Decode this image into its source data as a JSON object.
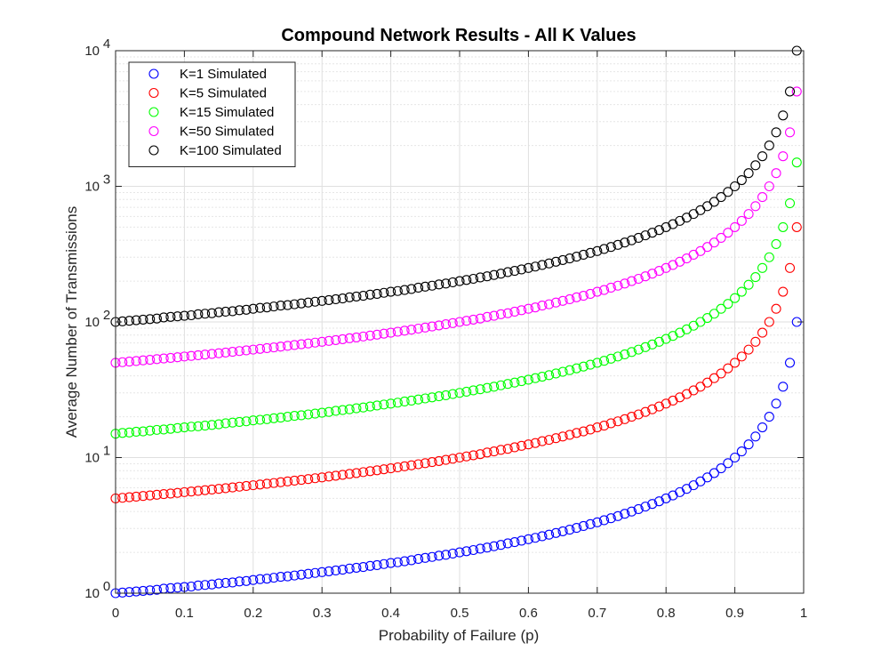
{
  "chart_data": {
    "type": "scatter",
    "title": "Compound Network Results - All K Values",
    "xlabel": "Probability of Failure (p)",
    "ylabel": "Average Number of Transmissions",
    "xlim": [
      0,
      1
    ],
    "ylim": [
      1,
      10000
    ],
    "yscale": "log",
    "grid": true,
    "minor_grid": true,
    "legend_position": "top-left",
    "x_ticks": [
      "0",
      "0.1",
      "0.2",
      "0.3",
      "0.4",
      "0.5",
      "0.6",
      "0.7",
      "0.8",
      "0.9",
      "1"
    ],
    "y_ticks": [
      {
        "value": 1,
        "base": "10",
        "exp": "0"
      },
      {
        "value": 10,
        "base": "10",
        "exp": "1"
      },
      {
        "value": 100,
        "base": "10",
        "exp": "2"
      },
      {
        "value": 1000,
        "base": "10",
        "exp": "3"
      },
      {
        "value": 10000,
        "base": "10",
        "exp": "4"
      }
    ],
    "x": [
      0,
      0.01,
      0.02,
      0.03,
      0.04,
      0.05,
      0.06,
      0.07,
      0.08,
      0.09,
      0.1,
      0.11,
      0.12,
      0.13,
      0.14,
      0.15,
      0.16,
      0.17,
      0.18,
      0.19,
      0.2,
      0.21,
      0.22,
      0.23,
      0.24,
      0.25,
      0.26,
      0.27,
      0.28,
      0.29,
      0.3,
      0.31,
      0.32,
      0.33,
      0.34,
      0.35,
      0.36,
      0.37,
      0.38,
      0.39,
      0.4,
      0.41,
      0.42,
      0.43,
      0.44,
      0.45,
      0.46,
      0.47,
      0.48,
      0.49,
      0.5,
      0.51,
      0.52,
      0.53,
      0.54,
      0.55,
      0.56,
      0.57,
      0.58,
      0.59,
      0.6,
      0.61,
      0.62,
      0.63,
      0.64,
      0.65,
      0.66,
      0.67,
      0.68,
      0.69,
      0.7,
      0.71,
      0.72,
      0.73,
      0.74,
      0.75,
      0.76,
      0.77,
      0.78,
      0.79,
      0.8,
      0.81,
      0.82,
      0.83,
      0.84,
      0.85,
      0.86,
      0.87,
      0.88,
      0.89,
      0.9,
      0.91,
      0.92,
      0.93,
      0.94,
      0.95,
      0.96,
      0.97,
      0.98,
      0.99
    ],
    "series": [
      {
        "name": "K=1 Simulated",
        "color": "#0000ff",
        "values": [
          1.0,
          1.01,
          1.02,
          1.03,
          1.04,
          1.05,
          1.06,
          1.08,
          1.09,
          1.1,
          1.11,
          1.12,
          1.14,
          1.15,
          1.16,
          1.18,
          1.19,
          1.2,
          1.22,
          1.23,
          1.25,
          1.27,
          1.28,
          1.3,
          1.32,
          1.33,
          1.35,
          1.37,
          1.39,
          1.41,
          1.43,
          1.45,
          1.47,
          1.49,
          1.52,
          1.54,
          1.56,
          1.59,
          1.61,
          1.64,
          1.67,
          1.69,
          1.72,
          1.75,
          1.79,
          1.82,
          1.85,
          1.89,
          1.92,
          1.96,
          2.0,
          2.04,
          2.08,
          2.13,
          2.17,
          2.22,
          2.27,
          2.33,
          2.38,
          2.44,
          2.5,
          2.56,
          2.63,
          2.7,
          2.78,
          2.86,
          2.94,
          3.03,
          3.13,
          3.23,
          3.33,
          3.45,
          3.57,
          3.7,
          3.85,
          4.0,
          4.17,
          4.35,
          4.55,
          4.76,
          5.0,
          5.26,
          5.56,
          5.88,
          6.25,
          6.67,
          7.14,
          7.69,
          8.33,
          9.09,
          10.0,
          11.1,
          12.5,
          14.3,
          16.7,
          20.0,
          25.0,
          33.3,
          50.0,
          100.0
        ]
      },
      {
        "name": "K=5 Simulated",
        "color": "#ff0000",
        "values": [
          5.0,
          5.05,
          5.1,
          5.15,
          5.21,
          5.26,
          5.32,
          5.38,
          5.43,
          5.49,
          5.56,
          5.62,
          5.68,
          5.75,
          5.81,
          5.88,
          5.95,
          6.02,
          6.1,
          6.17,
          6.25,
          6.33,
          6.41,
          6.49,
          6.58,
          6.67,
          6.76,
          6.85,
          6.94,
          7.04,
          7.14,
          7.25,
          7.35,
          7.46,
          7.58,
          7.69,
          7.81,
          7.94,
          8.06,
          8.2,
          8.33,
          8.47,
          8.62,
          8.77,
          8.93,
          9.09,
          9.26,
          9.43,
          9.62,
          9.8,
          10.0,
          10.2,
          10.4,
          10.6,
          10.9,
          11.1,
          11.4,
          11.6,
          11.9,
          12.2,
          12.5,
          12.8,
          13.2,
          13.5,
          13.9,
          14.3,
          14.7,
          15.2,
          15.6,
          16.1,
          16.7,
          17.2,
          17.9,
          18.5,
          19.2,
          20.0,
          20.8,
          21.7,
          22.7,
          23.8,
          25.0,
          26.3,
          27.8,
          29.4,
          31.3,
          33.3,
          35.7,
          38.5,
          41.7,
          45.5,
          50.0,
          55.6,
          62.5,
          71.4,
          83.3,
          100.0,
          125.0,
          167.0,
          250.0,
          500.0
        ]
      },
      {
        "name": "K=15 Simulated",
        "color": "#00ff00",
        "values": [
          15.0,
          15.2,
          15.3,
          15.5,
          15.6,
          15.8,
          16.0,
          16.1,
          16.3,
          16.5,
          16.7,
          16.9,
          17.0,
          17.2,
          17.4,
          17.6,
          17.9,
          18.1,
          18.3,
          18.5,
          18.8,
          19.0,
          19.2,
          19.5,
          19.7,
          20.0,
          20.3,
          20.5,
          20.8,
          21.1,
          21.4,
          21.7,
          22.1,
          22.4,
          22.7,
          23.1,
          23.4,
          23.8,
          24.2,
          24.6,
          25.0,
          25.4,
          25.9,
          26.3,
          26.8,
          27.3,
          27.8,
          28.3,
          28.8,
          29.4,
          30.0,
          30.6,
          31.3,
          31.9,
          32.6,
          33.3,
          34.1,
          34.9,
          35.7,
          36.6,
          37.5,
          38.5,
          39.5,
          40.5,
          41.7,
          42.9,
          44.1,
          45.5,
          46.9,
          48.4,
          50.0,
          51.7,
          53.6,
          55.6,
          57.7,
          60.0,
          62.5,
          65.2,
          68.2,
          71.4,
          75.0,
          78.9,
          83.3,
          88.2,
          93.8,
          100.0,
          107.0,
          115.0,
          125.0,
          136.0,
          150.0,
          167.0,
          188.0,
          214.0,
          250.0,
          300.0,
          375.0,
          500.0,
          750.0,
          1500.0
        ]
      },
      {
        "name": "K=50 Simulated",
        "color": "#ff00ff",
        "values": [
          50.0,
          50.5,
          51.0,
          51.5,
          52.1,
          52.6,
          53.2,
          53.8,
          54.3,
          54.9,
          55.6,
          56.2,
          56.8,
          57.5,
          58.1,
          58.8,
          59.5,
          60.2,
          61.0,
          61.7,
          62.5,
          63.3,
          64.1,
          64.9,
          65.8,
          66.7,
          67.6,
          68.5,
          69.4,
          70.4,
          71.4,
          72.5,
          73.5,
          74.6,
          75.8,
          76.9,
          78.1,
          79.4,
          80.6,
          82.0,
          83.3,
          84.7,
          86.2,
          87.7,
          89.3,
          90.9,
          92.6,
          94.3,
          96.2,
          98.0,
          100.0,
          102.0,
          104.0,
          106.0,
          109.0,
          111.0,
          114.0,
          116.0,
          119.0,
          122.0,
          125.0,
          128.0,
          132.0,
          135.0,
          139.0,
          143.0,
          147.0,
          152.0,
          156.0,
          161.0,
          167.0,
          172.0,
          179.0,
          185.0,
          192.0,
          200.0,
          208.0,
          217.0,
          227.0,
          238.0,
          250.0,
          263.0,
          278.0,
          294.0,
          313.0,
          333.0,
          357.0,
          385.0,
          417.0,
          455.0,
          500.0,
          556.0,
          625.0,
          714.0,
          833.0,
          1000.0,
          1250.0,
          1667.0,
          2500.0,
          5000.0
        ]
      },
      {
        "name": "K=100 Simulated",
        "color": "#000000",
        "values": [
          100.0,
          101.0,
          102.0,
          103.0,
          104.0,
          105.0,
          106.0,
          108.0,
          109.0,
          110.0,
          111.0,
          112.0,
          114.0,
          115.0,
          116.0,
          118.0,
          119.0,
          120.0,
          122.0,
          123.0,
          125.0,
          127.0,
          128.0,
          130.0,
          132.0,
          133.0,
          135.0,
          137.0,
          139.0,
          141.0,
          143.0,
          145.0,
          147.0,
          149.0,
          152.0,
          154.0,
          156.0,
          159.0,
          161.0,
          164.0,
          167.0,
          169.0,
          172.0,
          175.0,
          179.0,
          182.0,
          185.0,
          189.0,
          192.0,
          196.0,
          200.0,
          204.0,
          208.0,
          213.0,
          217.0,
          222.0,
          227.0,
          233.0,
          238.0,
          244.0,
          250.0,
          256.0,
          263.0,
          270.0,
          278.0,
          286.0,
          294.0,
          303.0,
          313.0,
          323.0,
          333.0,
          345.0,
          357.0,
          370.0,
          385.0,
          400.0,
          417.0,
          435.0,
          455.0,
          476.0,
          500.0,
          526.0,
          556.0,
          588.0,
          625.0,
          667.0,
          714.0,
          769.0,
          833.0,
          909.0,
          1000.0,
          1111.0,
          1250.0,
          1429.0,
          1667.0,
          2000.0,
          2500.0,
          3333.0,
          5000.0,
          10000.0
        ]
      }
    ]
  }
}
